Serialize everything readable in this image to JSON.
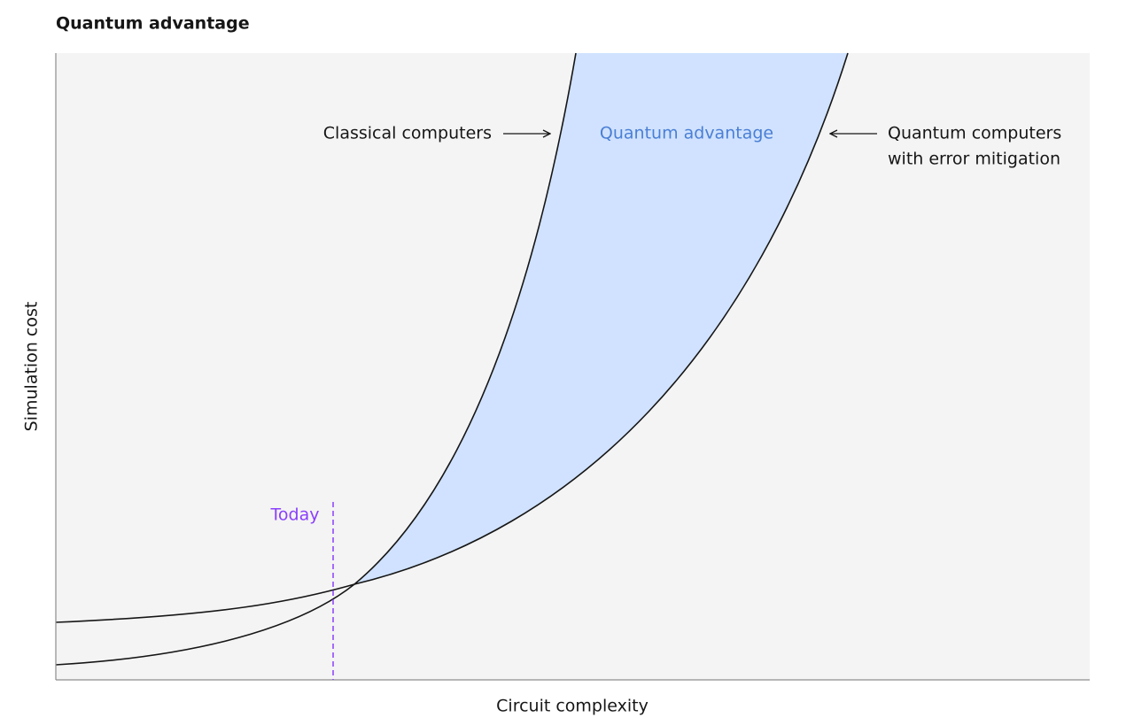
{
  "title": "Quantum advantage",
  "x_axis_label": "Circuit complexity",
  "y_axis_label": "Simulation cost",
  "annotations": {
    "classical": "Classical computers",
    "advantage": "Quantum advantage",
    "quantum": [
      "Quantum computers",
      "with error mitigation"
    ],
    "today": "Today"
  }
}
